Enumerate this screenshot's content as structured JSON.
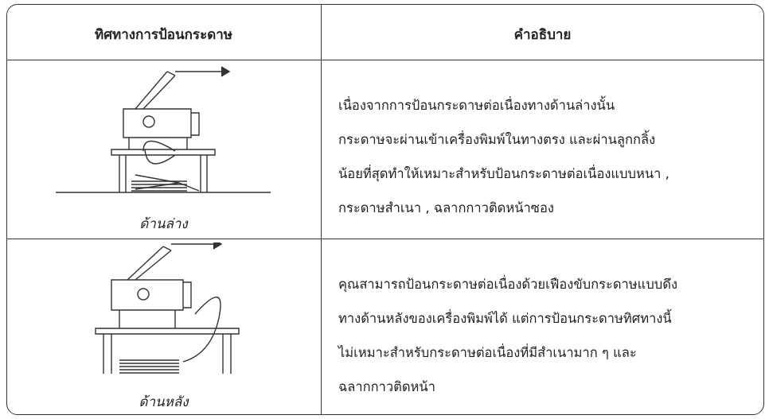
{
  "table": {
    "headers": [
      "ทิศทางการป้อนกระดาษ",
      "คำอธิบาย"
    ],
    "rows": [
      {
        "caption": "ด้านล่าง",
        "lines": [
          "เนื่องจากการป้อนกระดาษต่อเนื่องทางด้านล่างนั้น",
          "กระดาษจะผ่านเข้าเครื่องพิมพ์ในทางตรง และผ่านลูกกลิ้ง",
          "น้อยที่สุดทำให้เหมาะสำหรับป้อนกระดาษต่อเนื่องแบบหนา ,",
          "กระดาษสำเนา , ฉลากกาวติดหน้าซอง"
        ]
      },
      {
        "caption": "ด้านหลัง",
        "lines": [
          "คุณสามารถป้อนกระดาษต่อเนื่องด้วยเฟืองขับกระดาษแบบดึง",
          "ทางด้านหลังของเครื่องพิมพ์ได้ แต่การป้อนกระดาษทิศทางนี้",
          "ไม่เหมาะสำหรับกระดาษต่อเนื่องที่มีสำเนามาก ๆ และ",
          "ฉลากกาวติดหน้า"
        ]
      }
    ]
  }
}
